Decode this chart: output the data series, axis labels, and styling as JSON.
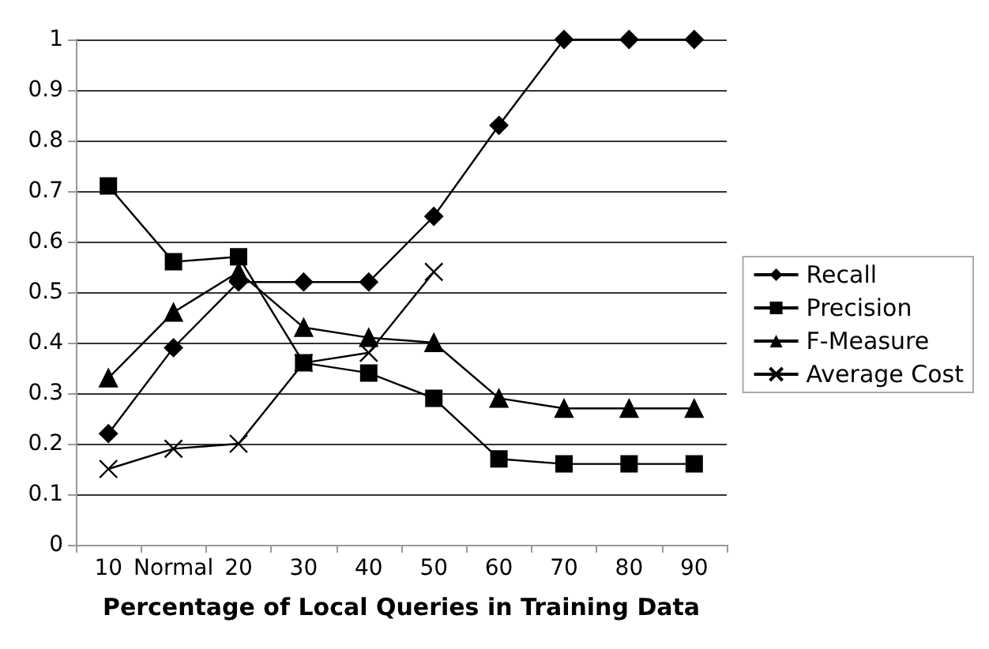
{
  "chart_data": {
    "type": "line",
    "xlabel": "Percentage of Local Queries in Training Data",
    "categories": [
      "10",
      "Normal",
      "20",
      "30",
      "40",
      "50",
      "60",
      "70",
      "80",
      "90"
    ],
    "series": [
      {
        "name": "Recall",
        "color": "#000000",
        "marker": "diamond",
        "values": [
          0.22,
          0.39,
          0.52,
          0.52,
          0.52,
          0.65,
          0.83,
          1,
          1,
          1
        ]
      },
      {
        "name": "Precision",
        "color": "#000000",
        "marker": "square",
        "values": [
          0.71,
          0.56,
          0.57,
          0.36,
          0.34,
          0.29,
          0.17,
          0.16,
          0.16,
          0.16
        ]
      },
      {
        "name": "F-Measure",
        "color": "#000000",
        "marker": "triangle",
        "values": [
          0.33,
          0.46,
          0.54,
          0.43,
          0.41,
          0.4,
          0.29,
          0.27,
          0.27,
          0.27
        ]
      },
      {
        "name": "Average Cost",
        "color": "#000000",
        "marker": "cross",
        "values": [
          0.15,
          0.19,
          0.2,
          0.36,
          0.38,
          0.54,
          null,
          null,
          null,
          null
        ]
      }
    ],
    "ylim": [
      0,
      1
    ],
    "yticks": [
      0,
      0.1,
      0.2,
      0.3,
      0.4,
      0.5,
      0.6,
      0.7,
      0.8,
      0.9,
      1
    ],
    "grid": "y",
    "legend": "right"
  }
}
